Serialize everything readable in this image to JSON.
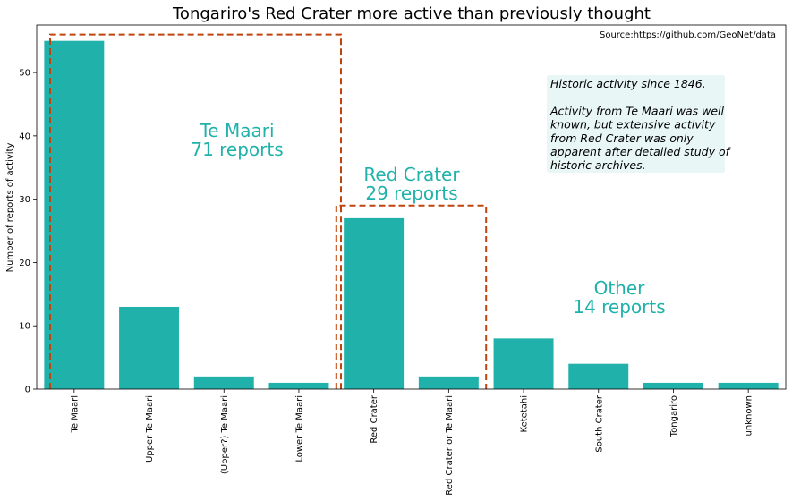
{
  "chart_data": {
    "type": "bar",
    "title": "Tongariro's Red Crater more active than previously thought",
    "source": "Source:https://github.com/GeoNet/data",
    "xlabel": "",
    "ylabel": "Number of reports of activity",
    "ylim": [
      0,
      57.5
    ],
    "yticks": [
      0,
      10,
      20,
      30,
      40,
      50
    ],
    "grid": false,
    "categories": [
      "Te Maari",
      "Upper Te Maari",
      "(Upper?) Te Maari",
      "Lower Te Maari",
      "Red Crater",
      "Red Crater or Te Maari",
      "Ketetahi",
      "South Crater",
      "Tongariro",
      "unknown"
    ],
    "values": [
      55,
      13,
      2,
      1,
      27,
      2,
      8,
      4,
      1,
      1
    ],
    "bar_color": "#20b2aa",
    "groups": [
      {
        "lines": [
          "Te Maari",
          "71 reports"
        ],
        "from_index": 0,
        "to_index": 3,
        "box_top": 56,
        "boxed": true
      },
      {
        "lines": [
          "Red Crater",
          "29 reports"
        ],
        "from_index": 4,
        "to_index": 5,
        "box_top": 29,
        "boxed": true
      },
      {
        "lines": [
          "Other",
          "14 reports"
        ],
        "from_index": 6,
        "to_index": 9,
        "boxed": false
      }
    ],
    "group_label_color": "#20b2aa",
    "box_color": "#c0440e",
    "note": {
      "lines": [
        "Historic activity since 1846.",
        "",
        "Activity from Te Maari was well",
        "known, but extensive activity",
        "from Red Crater was only",
        "apparent after detailed study of",
        "historic archives."
      ],
      "background": "#e8f6f5"
    }
  }
}
